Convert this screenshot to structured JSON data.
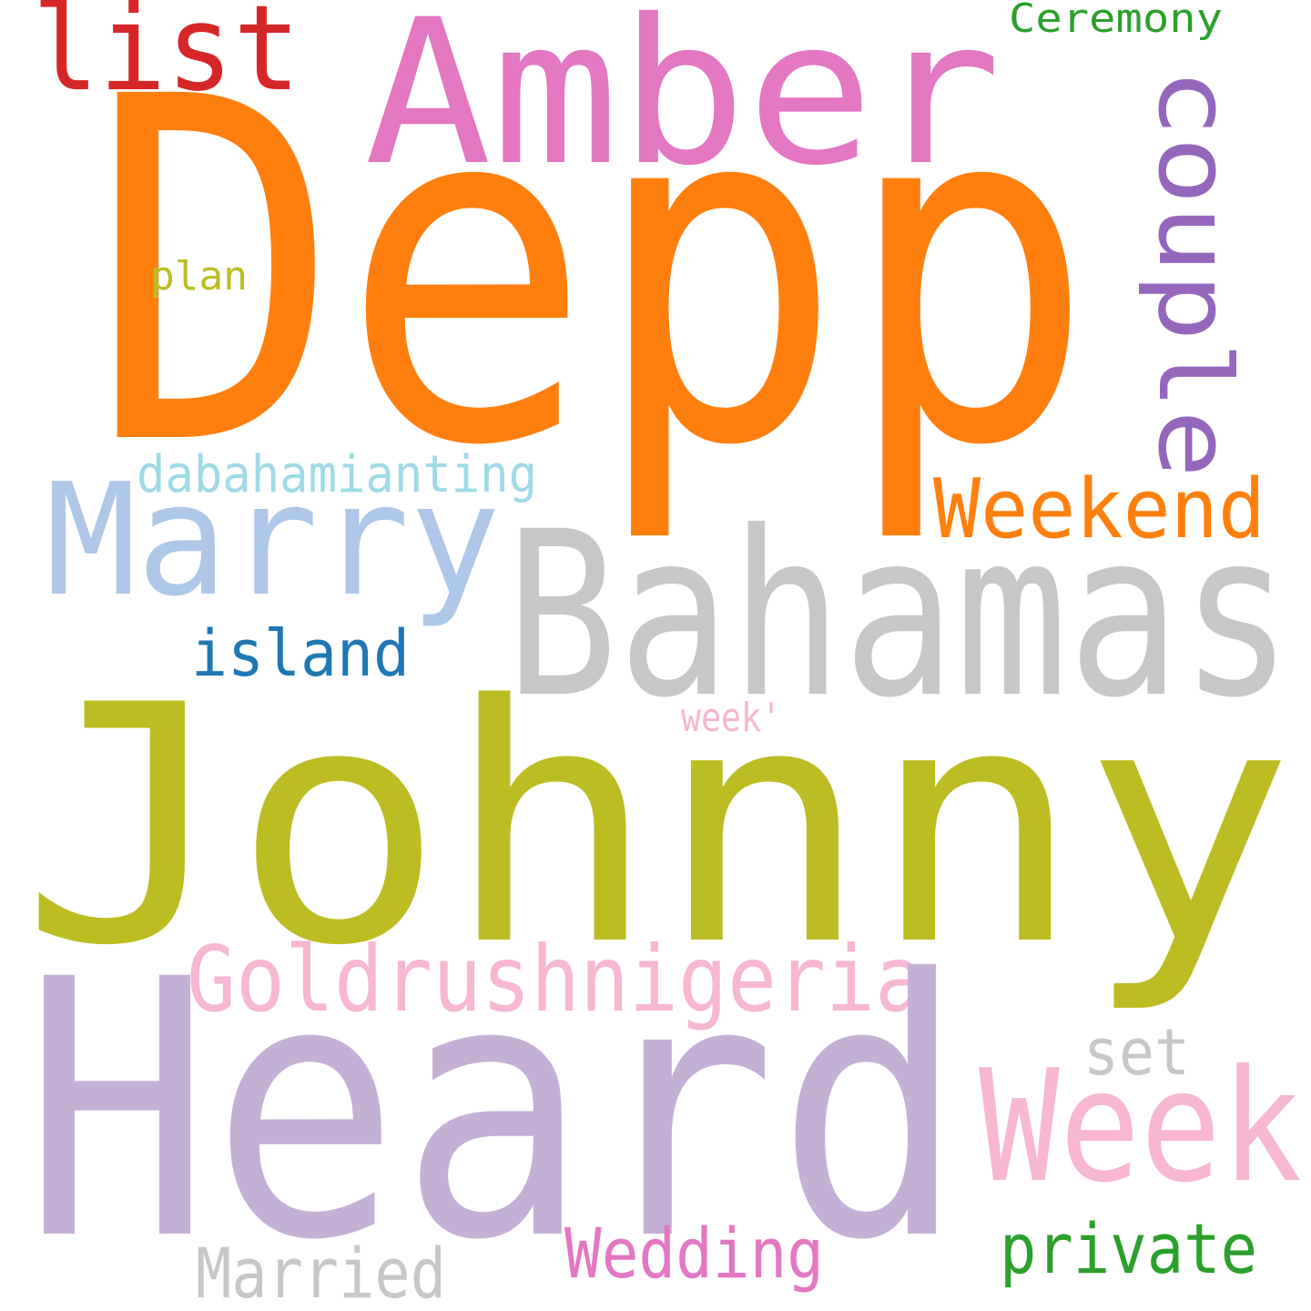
{
  "words": [
    {
      "key": "depp",
      "text": "Depp",
      "color": "#ff7f0e",
      "rotated": false
    },
    {
      "key": "amber",
      "text": "Amber",
      "color": "#e377c2",
      "rotated": false
    },
    {
      "key": "list",
      "text": "list",
      "color": "#d62728",
      "rotated": false
    },
    {
      "key": "ceremony",
      "text": "Ceremony",
      "color": "#2ca02c",
      "rotated": false
    },
    {
      "key": "couple",
      "text": "couple",
      "color": "#9467bd",
      "rotated": true
    },
    {
      "key": "plan",
      "text": "plan",
      "color": "#bcbd22",
      "rotated": false
    },
    {
      "key": "dabahamianting",
      "text": "dabahamianting",
      "color": "#9edae5",
      "rotated": false
    },
    {
      "key": "marry",
      "text": "Marry",
      "color": "#aec7e8",
      "rotated": false
    },
    {
      "key": "weekend",
      "text": "Weekend",
      "color": "#ff7f0e",
      "rotated": false
    },
    {
      "key": "bahamas",
      "text": "Bahamas",
      "color": "#c7c7c7",
      "rotated": false
    },
    {
      "key": "island",
      "text": "island",
      "color": "#1f77b4",
      "rotated": false
    },
    {
      "key": "week_quote",
      "text": "week'",
      "color": "#f7b6d2",
      "rotated": false
    },
    {
      "key": "johnny",
      "text": "Johnny",
      "color": "#bcbd22",
      "rotated": false
    },
    {
      "key": "goldrushnigeria",
      "text": "Goldrushnigeria",
      "color": "#f7b6d2",
      "rotated": false
    },
    {
      "key": "set",
      "text": "set",
      "color": "#c7c7c7",
      "rotated": false
    },
    {
      "key": "heard",
      "text": "Heard",
      "color": "#c5b0d5",
      "rotated": false
    },
    {
      "key": "week",
      "text": "Week",
      "color": "#f7b6d2",
      "rotated": false
    },
    {
      "key": "private",
      "text": "private",
      "color": "#2ca02c",
      "rotated": false
    },
    {
      "key": "wedding",
      "text": "Wedding",
      "color": "#e377c2",
      "rotated": false
    },
    {
      "key": "married",
      "text": "Married",
      "color": "#c7c7c7",
      "rotated": false
    }
  ]
}
